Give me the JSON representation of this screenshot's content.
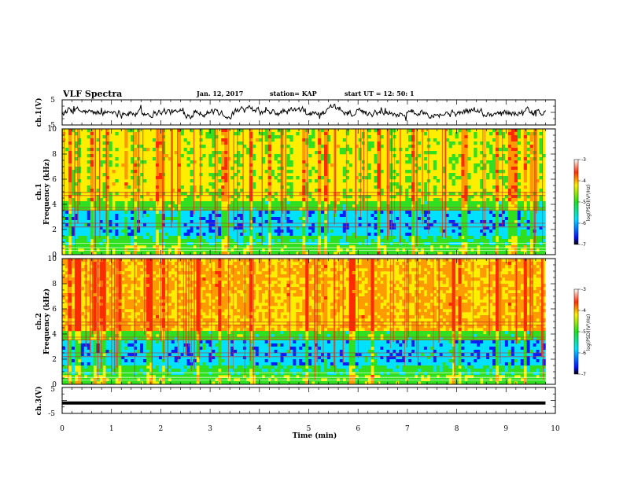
{
  "header": {
    "title": "VLF Spectra",
    "date": "Jan. 12, 2017",
    "station": "station= KAP",
    "start_ut": "start  UT =   12: 50: 1"
  },
  "chart_data": [
    {
      "type": "line",
      "panel": "ch1-voltage",
      "ylabel": "ch.1(V)",
      "ylim": [
        -5,
        5
      ],
      "yticks": [
        "5",
        "-5"
      ],
      "xlim": [
        0,
        10
      ],
      "note_series": "continuous noisy waveform around ~0 V, roughly ±1.5 V amplitude, spanning 0–9.8 min"
    },
    {
      "type": "heatmap",
      "panel": "ch1-spectrum",
      "ylabel": "ch.1\nFrequency (kHz)",
      "ylabel_lines": [
        "ch.1",
        "Frequency (kHz)"
      ],
      "ylim": [
        0,
        10
      ],
      "yticks": [
        "0",
        "2",
        "4",
        "6",
        "8",
        "10"
      ],
      "xlim": [
        0,
        9.8
      ],
      "colorbar": {
        "label": "log(PSD)(V²/Hz)",
        "min": -7,
        "max": -3,
        "ticks": [
          "-3",
          "-4",
          "-5",
          "-6",
          "-7"
        ]
      }
    },
    {
      "type": "heatmap",
      "panel": "ch2-spectrum",
      "ylabel_lines": [
        "ch.2",
        "Frequency (kHz)"
      ],
      "ylim": [
        0,
        10
      ],
      "yticks": [
        "0",
        "2",
        "4",
        "6",
        "8",
        "10"
      ],
      "xlim": [
        0,
        9.8
      ],
      "colorbar": {
        "label": "log(PSD)(V²/Hz)",
        "min": -7,
        "max": -3,
        "ticks": [
          "-3",
          "-4",
          "-5",
          "-6",
          "-7"
        ]
      }
    },
    {
      "type": "line",
      "panel": "ch3-voltage",
      "ylabel": "ch.3(V)",
      "ylim": [
        -5,
        5
      ],
      "yticks": [
        "5",
        "-5"
      ],
      "series": [
        {
          "x": [
            0,
            9.8
          ],
          "y": [
            -1,
            -1
          ]
        }
      ],
      "xlabel": "Time (min)",
      "xlim": [
        0,
        10
      ],
      "xticks": [
        "0",
        "1",
        "2",
        "3",
        "4",
        "5",
        "6",
        "7",
        "8",
        "9",
        "10"
      ]
    }
  ],
  "colors": {
    "red": "#ff2a00",
    "orange": "#ff9a00",
    "yellow": "#ffee00",
    "green": "#30e020",
    "cyan": "#00e0ff",
    "blue": "#0020ff",
    "black": "#000000"
  }
}
